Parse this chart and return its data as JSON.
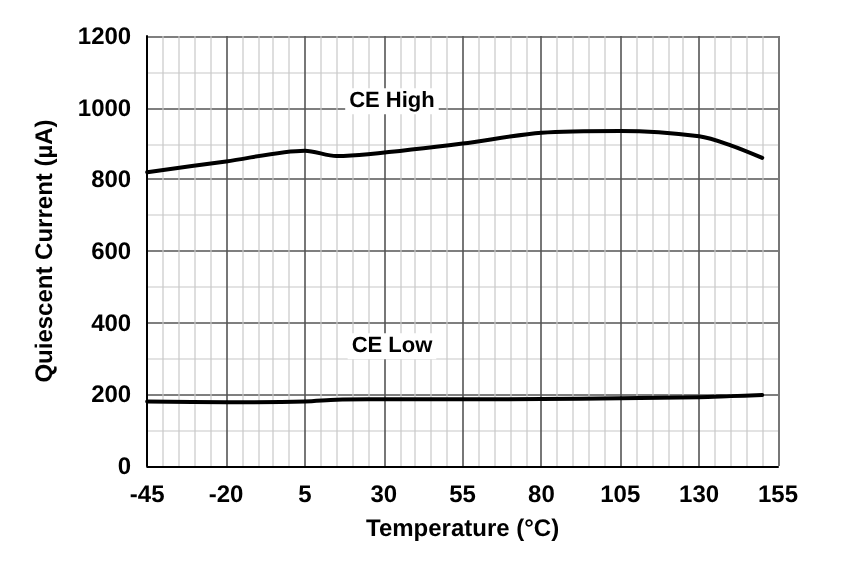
{
  "chart_data": {
    "type": "line",
    "xlabel": "Temperature (°C)",
    "ylabel": "Quiescent Current (µA)",
    "x": [
      -45,
      -20,
      5,
      15,
      25,
      55,
      80,
      105,
      130,
      140,
      150
    ],
    "series": [
      {
        "name": "CE High",
        "color": "#000000",
        "values": [
          820,
          850,
          880,
          865,
          870,
          900,
          930,
          935,
          920,
          895,
          860
        ]
      },
      {
        "name": "CE Low",
        "color": "#000000",
        "values": [
          180,
          178,
          180,
          185,
          186,
          186,
          187,
          189,
          192,
          195,
          198
        ]
      }
    ],
    "xlim": [
      -45,
      155
    ],
    "xticks": [
      -45,
      -20,
      5,
      30,
      55,
      80,
      105,
      130,
      155
    ],
    "ylim": [
      0,
      1200
    ],
    "yticks": [
      0,
      200,
      400,
      600,
      800,
      1000,
      1200
    ],
    "grid": true,
    "marker": "none",
    "line_style": "solid"
  }
}
